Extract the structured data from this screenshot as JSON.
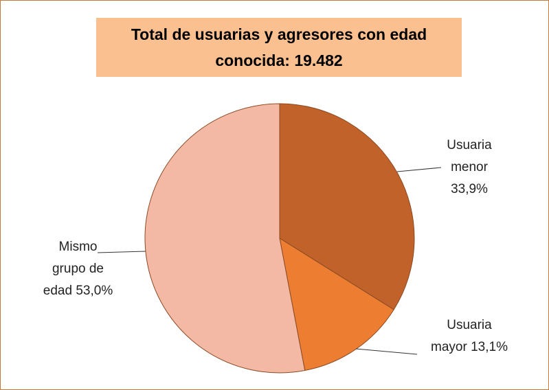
{
  "chart_data": {
    "type": "pie",
    "title": "Total de usuarias y agresores con edad conocida: 19.482",
    "categories": [
      "Usuaria menor",
      "Usuaria mayor",
      "Mismo grupo de edad"
    ],
    "values": [
      33.9,
      13.1,
      53.0
    ],
    "value_labels": [
      "33,9%",
      "13,1%",
      "53,0%"
    ],
    "colors": [
      "#c0622a",
      "#ed7d31",
      "#f4b9a4"
    ]
  }
}
